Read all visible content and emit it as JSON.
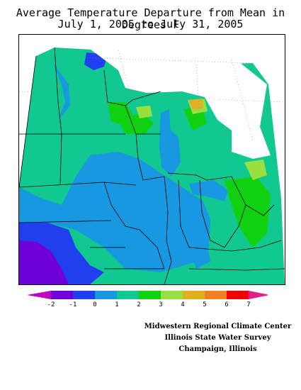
{
  "title": {
    "line1": "Average Temperature Departure from Mean in Degrees F",
    "line2": "July 1, 2005 to July 31, 2005"
  },
  "legend": {
    "ticks": [
      "-2",
      "-1",
      "0",
      "1",
      "2",
      "3",
      "4",
      "5",
      "6",
      "7"
    ],
    "colors": [
      "#c000c0",
      "#7000d8",
      "#2040f0",
      "#1898e0",
      "#10c890",
      "#10d010",
      "#98e040",
      "#e0b020",
      "#f08020",
      "#f00000",
      "#e0208a"
    ]
  },
  "credits": {
    "line1": "Midwestern Regional Climate Center",
    "line2": "Illinois State Water Survey",
    "line3": "Champaign, Illinois"
  }
}
